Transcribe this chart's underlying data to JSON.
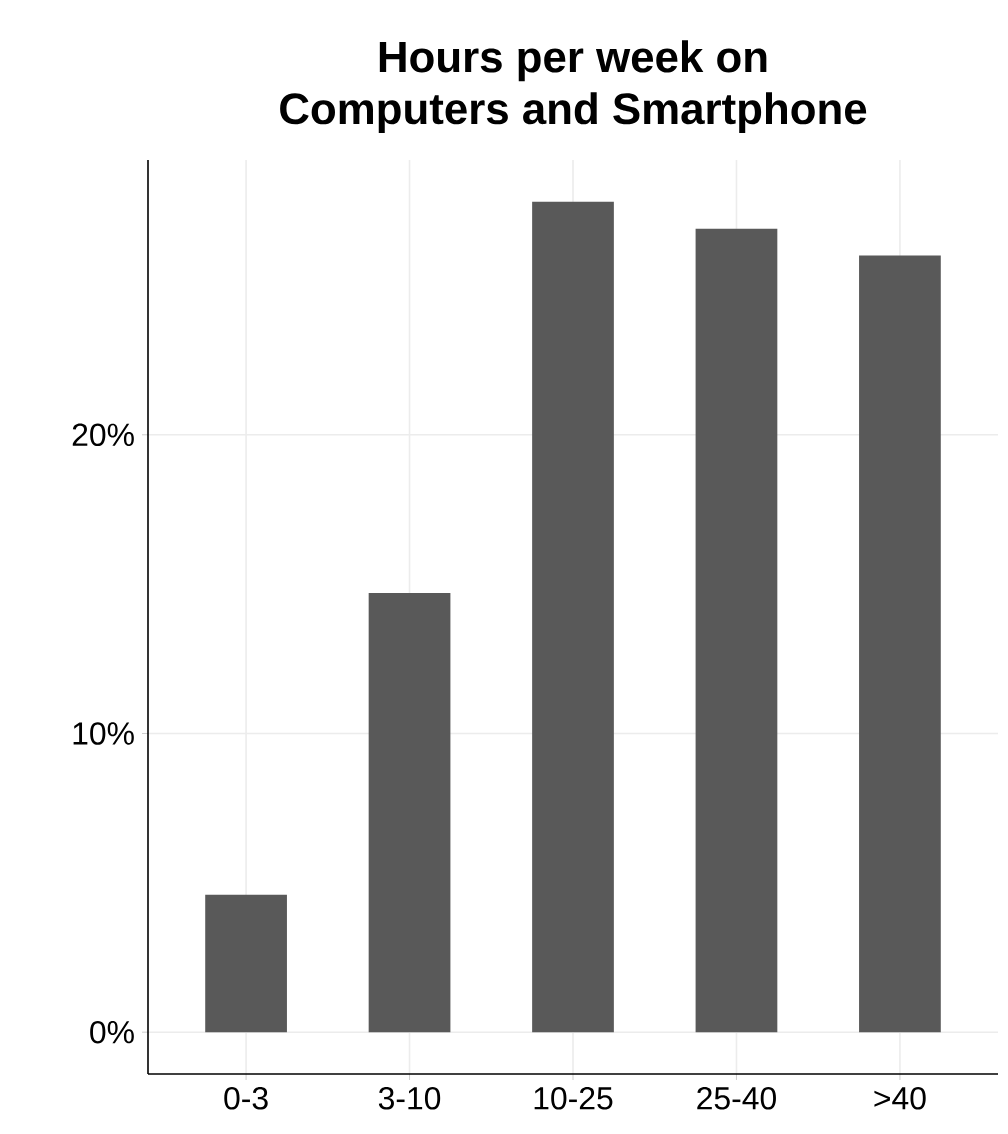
{
  "chart_data": {
    "type": "bar",
    "title": "Hours per week on\nComputers and Smartphone",
    "categories": [
      "0-3",
      "3-10",
      "10-25",
      "25-40",
      ">40"
    ],
    "values": [
      4.6,
      14.7,
      27.8,
      26.9,
      26.0
    ],
    "color": "#595959",
    "ylim": [
      -1.4,
      29.2
    ],
    "yticks": [
      {
        "value": 0,
        "label": "0%"
      },
      {
        "value": 10,
        "label": "10%"
      },
      {
        "value": 20,
        "label": "20%"
      }
    ],
    "grid": true
  }
}
